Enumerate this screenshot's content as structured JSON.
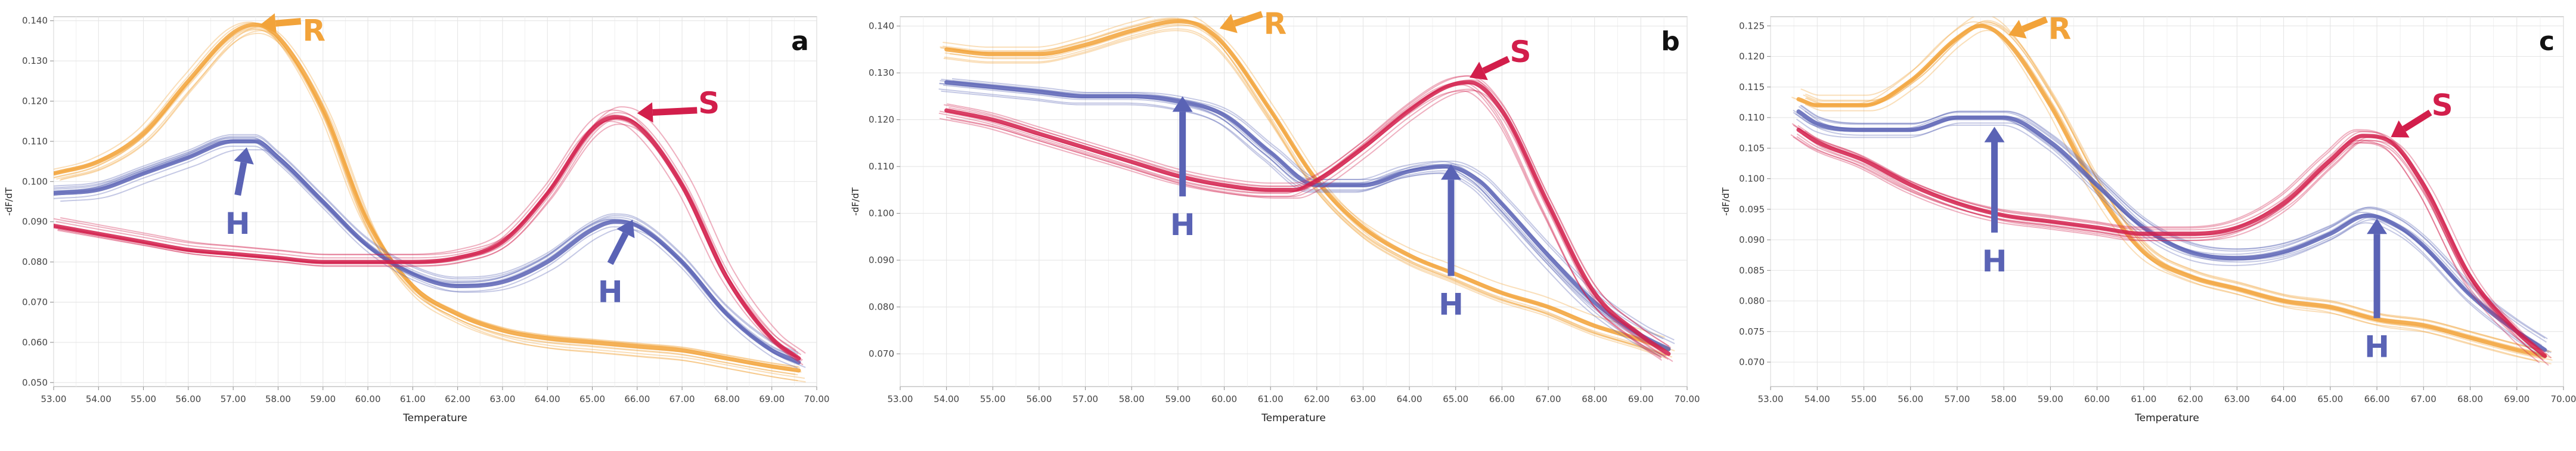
{
  "figure": {
    "x_axis_label": "Temperature",
    "y_axis_label": "-dF/dT",
    "colors": {
      "R": "#F2A33A",
      "S": "#D21E4B",
      "H": "#5A63B5",
      "grid": "#E3E3E3",
      "frame": "#B8B8B8"
    }
  },
  "chart_data": [
    {
      "panel": "a",
      "type": "line",
      "xlabel": "Temperature",
      "ylabel": "-dF/dT",
      "xlim": [
        53.0,
        70.0
      ],
      "ylim": [
        0.049,
        0.141
      ],
      "x_ticks": [
        "53.00",
        "54.00",
        "55.00",
        "56.00",
        "57.00",
        "58.00",
        "59.00",
        "60.00",
        "61.00",
        "62.00",
        "63.00",
        "64.00",
        "65.00",
        "66.00",
        "67.00",
        "68.00",
        "69.00",
        "70.00"
      ],
      "y_ticks": [
        "0.050",
        "0.060",
        "0.070",
        "0.080",
        "0.090",
        "0.100",
        "0.110",
        "0.120",
        "0.130",
        "0.140"
      ],
      "grid": true,
      "series": [
        {
          "name": "R",
          "x": [
            53.0,
            54,
            55,
            56,
            57,
            57.5,
            58,
            59,
            60,
            61,
            62,
            63,
            64,
            65,
            66,
            67,
            68,
            69,
            69.6
          ],
          "y": [
            0.102,
            0.105,
            0.112,
            0.125,
            0.137,
            0.139,
            0.136,
            0.118,
            0.09,
            0.074,
            0.067,
            0.063,
            0.061,
            0.06,
            0.059,
            0.058,
            0.056,
            0.054,
            0.053
          ]
        },
        {
          "name": "H",
          "x": [
            53.0,
            54,
            55,
            56,
            57,
            57.5,
            58,
            59,
            60,
            61,
            62,
            63,
            64,
            65,
            65.5,
            66,
            67,
            68,
            69,
            69.6
          ],
          "y": [
            0.097,
            0.098,
            0.102,
            0.106,
            0.11,
            0.11,
            0.106,
            0.095,
            0.084,
            0.077,
            0.074,
            0.075,
            0.08,
            0.088,
            0.09,
            0.089,
            0.08,
            0.067,
            0.058,
            0.055
          ]
        },
        {
          "name": "S",
          "x": [
            53.0,
            54,
            55,
            56,
            57,
            58,
            59,
            60,
            61,
            62,
            63,
            64,
            65,
            65.5,
            66,
            67,
            68,
            69,
            69.6
          ],
          "y": [
            0.089,
            0.087,
            0.085,
            0.083,
            0.082,
            0.081,
            0.08,
            0.08,
            0.08,
            0.081,
            0.085,
            0.097,
            0.113,
            0.116,
            0.114,
            0.099,
            0.076,
            0.061,
            0.056
          ]
        }
      ],
      "annotations": [
        {
          "label": "R",
          "target_series": "R",
          "target": [
            57.6,
            0.139
          ],
          "text_at": [
            58.8,
            0.1375
          ]
        },
        {
          "label": "S",
          "target_series": "S",
          "target": [
            66.0,
            0.117
          ],
          "text_at": [
            67.6,
            0.1195
          ]
        },
        {
          "label": "H",
          "target_series": "H",
          "target": [
            57.3,
            0.1085
          ],
          "text_at": [
            57.1,
            0.0895
          ]
        },
        {
          "label": "H",
          "target_series": "H",
          "target": [
            65.9,
            0.0905
          ],
          "text_at": [
            65.4,
            0.0725
          ]
        }
      ]
    },
    {
      "panel": "b",
      "type": "line",
      "xlabel": "Temperature",
      "ylabel": "-dF/dT",
      "xlim": [
        53.0,
        70.0
      ],
      "ylim": [
        0.063,
        0.142
      ],
      "x_ticks": [
        "53.00",
        "54.00",
        "55.00",
        "56.00",
        "57.00",
        "58.00",
        "59.00",
        "60.00",
        "61.00",
        "62.00",
        "63.00",
        "64.00",
        "65.00",
        "66.00",
        "67.00",
        "68.00",
        "69.00",
        "70.00"
      ],
      "y_ticks": [
        "0.070",
        "0.080",
        "0.090",
        "0.100",
        "0.110",
        "0.120",
        "0.130",
        "0.140"
      ],
      "grid": true,
      "series": [
        {
          "name": "R",
          "x": [
            54.0,
            55,
            56,
            57,
            58,
            59,
            59.5,
            60,
            61,
            62,
            63,
            64,
            65,
            66,
            67,
            68,
            69,
            69.6
          ],
          "y": [
            0.135,
            0.134,
            0.134,
            0.136,
            0.139,
            0.141,
            0.14,
            0.136,
            0.122,
            0.107,
            0.097,
            0.091,
            0.087,
            0.083,
            0.08,
            0.076,
            0.073,
            0.071
          ]
        },
        {
          "name": "H",
          "x": [
            54.0,
            55,
            56,
            57,
            58,
            59,
            60,
            61,
            62,
            63,
            64,
            64.8,
            65.5,
            66,
            67,
            68,
            69,
            69.6
          ],
          "y": [
            0.128,
            0.127,
            0.126,
            0.125,
            0.125,
            0.124,
            0.121,
            0.113,
            0.106,
            0.106,
            0.109,
            0.11,
            0.107,
            0.102,
            0.091,
            0.081,
            0.074,
            0.071
          ]
        },
        {
          "name": "S",
          "x": [
            54.0,
            55,
            56,
            57,
            58,
            59,
            60,
            61,
            61.5,
            62,
            63,
            64,
            64.8,
            65.3,
            66,
            67,
            68,
            69,
            69.6
          ],
          "y": [
            0.122,
            0.12,
            0.117,
            0.114,
            0.111,
            0.108,
            0.106,
            0.105,
            0.105,
            0.107,
            0.114,
            0.122,
            0.127,
            0.128,
            0.122,
            0.102,
            0.083,
            0.074,
            0.07
          ]
        }
      ],
      "annotations": [
        {
          "label": "R",
          "target_series": "R",
          "target": [
            59.9,
            0.1395
          ],
          "text_at": [
            61.1,
            0.1405
          ]
        },
        {
          "label": "S",
          "target_series": "S",
          "target": [
            65.3,
            0.129
          ],
          "text_at": [
            66.4,
            0.1345
          ]
        },
        {
          "label": "H",
          "target_series": "H",
          "target": [
            59.1,
            0.125
          ],
          "text_at": [
            59.1,
            0.0975
          ]
        },
        {
          "label": "H",
          "target_series": "H",
          "target": [
            64.9,
            0.1105
          ],
          "text_at": [
            64.9,
            0.0805
          ]
        }
      ]
    },
    {
      "panel": "c",
      "type": "line",
      "xlabel": "Temperature",
      "ylabel": "-dF/dT",
      "xlim": [
        53.0,
        70.0
      ],
      "ylim": [
        0.066,
        0.1265
      ],
      "x_ticks": [
        "53.00",
        "54.00",
        "55.00",
        "56.00",
        "57.00",
        "58.00",
        "59.00",
        "60.00",
        "61.00",
        "62.00",
        "63.00",
        "64.00",
        "65.00",
        "66.00",
        "67.00",
        "68.00",
        "69.00",
        "70.00"
      ],
      "y_ticks": [
        "0.070",
        "0.075",
        "0.080",
        "0.085",
        "0.090",
        "0.095",
        "0.100",
        "0.105",
        "0.110",
        "0.115",
        "0.120",
        "0.125"
      ],
      "grid": true,
      "series": [
        {
          "name": "R",
          "x": [
            53.6,
            54,
            55,
            56,
            57,
            57.5,
            58,
            59,
            60,
            61,
            62,
            63,
            64,
            65,
            66,
            67,
            68,
            69,
            69.6
          ],
          "y": [
            0.113,
            0.112,
            0.112,
            0.116,
            0.123,
            0.125,
            0.123,
            0.112,
            0.098,
            0.088,
            0.084,
            0.082,
            0.08,
            0.079,
            0.077,
            0.076,
            0.074,
            0.072,
            0.071
          ]
        },
        {
          "name": "H",
          "x": [
            53.6,
            54,
            55,
            56,
            57,
            58,
            59,
            60,
            61,
            62,
            63,
            64,
            65,
            65.8,
            66.5,
            67,
            68,
            69,
            69.6
          ],
          "y": [
            0.111,
            0.109,
            0.108,
            0.108,
            0.11,
            0.11,
            0.106,
            0.099,
            0.092,
            0.088,
            0.087,
            0.088,
            0.091,
            0.094,
            0.092,
            0.089,
            0.081,
            0.075,
            0.072
          ]
        },
        {
          "name": "S",
          "x": [
            53.6,
            54,
            55,
            56,
            57,
            58,
            59,
            60,
            61,
            62,
            63,
            64,
            65,
            65.7,
            66.3,
            67,
            68,
            69,
            69.6
          ],
          "y": [
            0.108,
            0.106,
            0.103,
            0.099,
            0.096,
            0.094,
            0.093,
            0.092,
            0.091,
            0.091,
            0.092,
            0.096,
            0.103,
            0.107,
            0.106,
            0.099,
            0.084,
            0.075,
            0.071
          ]
        }
      ],
      "annotations": [
        {
          "label": "R",
          "target_series": "R",
          "target": [
            58.1,
            0.1235
          ],
          "text_at": [
            59.2,
            0.1245
          ]
        },
        {
          "label": "S",
          "target_series": "S",
          "target": [
            66.3,
            0.1068
          ],
          "text_at": [
            67.4,
            0.112
          ]
        },
        {
          "label": "H",
          "target_series": "H",
          "target": [
            57.8,
            0.1085
          ],
          "text_at": [
            57.8,
            0.0865
          ]
        },
        {
          "label": "H",
          "target_series": "H",
          "target": [
            66.0,
            0.0935
          ],
          "text_at": [
            66.0,
            0.0725
          ]
        }
      ]
    }
  ]
}
